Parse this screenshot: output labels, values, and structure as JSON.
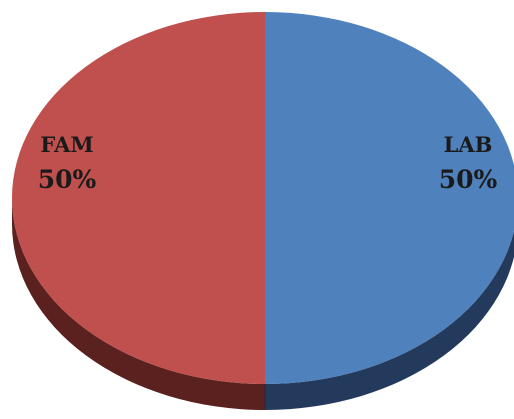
{
  "chart_data": {
    "type": "pie",
    "style": "3d",
    "slices": [
      {
        "label": "LAB",
        "value": 50,
        "percent_label": "50%",
        "color": "#4f81bd",
        "side_color": "#243a5c"
      },
      {
        "label": "FAM",
        "value": 50,
        "percent_label": "50%",
        "color": "#c0504d",
        "side_color": "#5a211f"
      }
    ],
    "data_labels": "inside",
    "legend": "none"
  }
}
